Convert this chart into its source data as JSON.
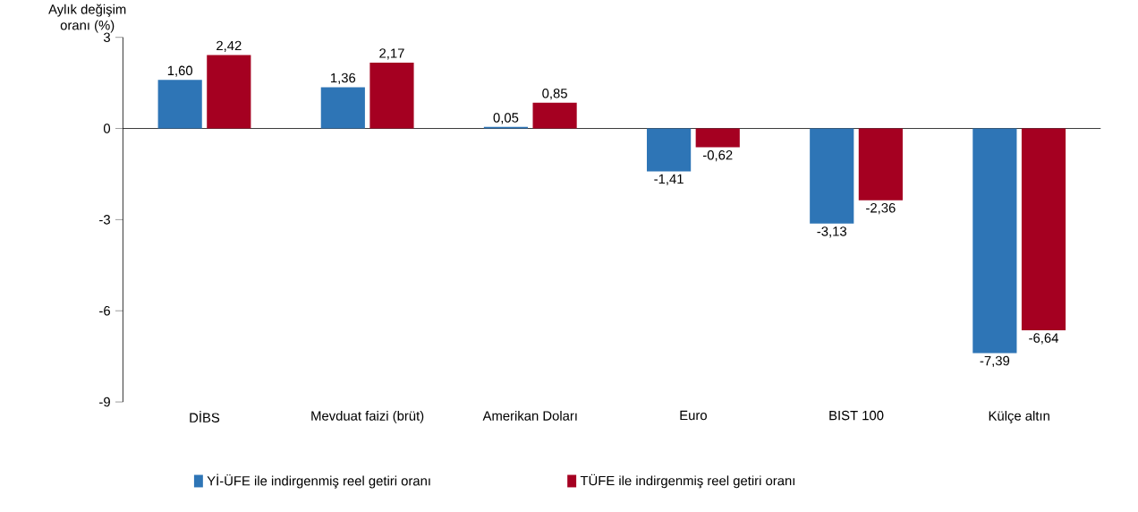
{
  "chart_data": {
    "type": "bar",
    "ylabel": "Aylık değişim oranı (%)",
    "categories": [
      "DİBS",
      "Mevduat faizi (brüt)",
      "Amerikan Doları",
      "Euro",
      "BIST 100",
      "Külçe altın"
    ],
    "series": [
      {
        "name": "Yİ-ÜFE ile indirgenmiş reel getiri oranı",
        "color": "#2e75b6",
        "values": [
          1.6,
          1.36,
          0.05,
          -1.41,
          -3.13,
          -7.39
        ],
        "value_labels": [
          "1,60",
          "1,36",
          "0,05",
          "-1,41",
          "-3,13",
          "-7,39"
        ]
      },
      {
        "name": "TÜFE ile indirgenmiş reel getiri oranı",
        "color": "#a50021",
        "values": [
          2.42,
          2.17,
          0.85,
          -0.62,
          -2.36,
          -6.64
        ],
        "value_labels": [
          "2,42",
          "2,17",
          "0,85",
          "-0,62",
          "-2,36",
          "-6,64"
        ]
      }
    ],
    "ylim": [
      -9,
      3
    ],
    "yticks": [
      3,
      0,
      -3,
      -6,
      -9
    ],
    "legend": "bottom"
  }
}
